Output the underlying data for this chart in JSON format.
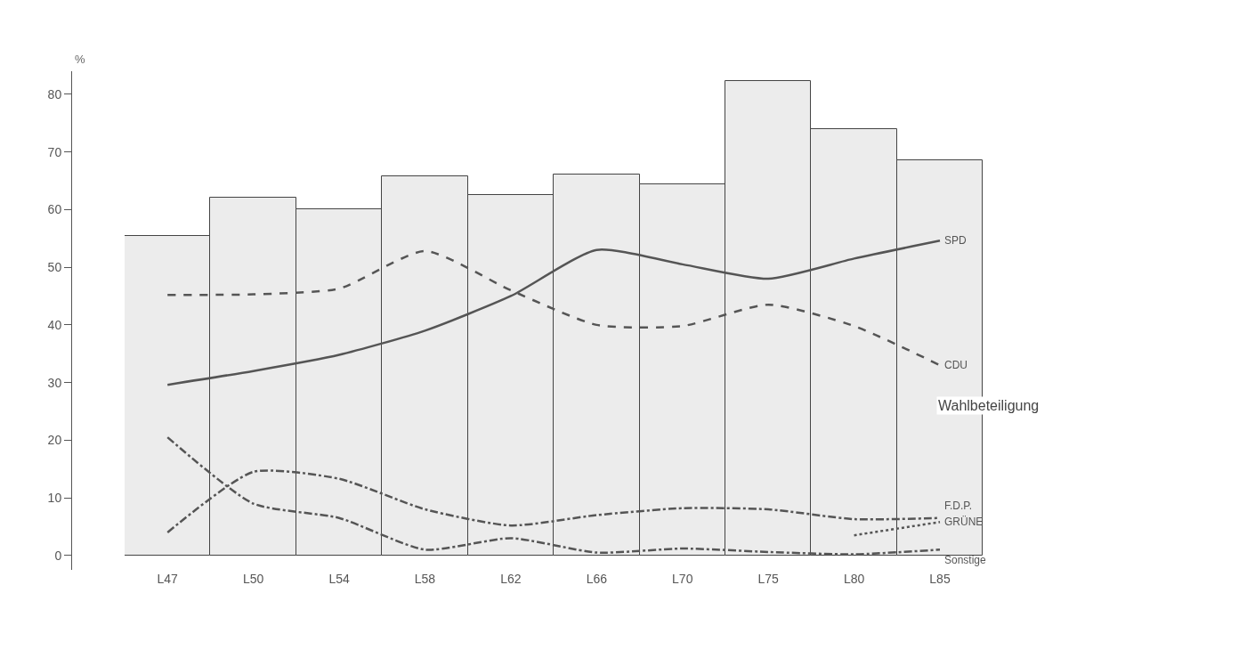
{
  "chart_data": {
    "type": "bar",
    "ylabel": "%",
    "categories": [
      "L47",
      "L50",
      "L54",
      "L58",
      "L62",
      "L66",
      "L70",
      "L75",
      "L80",
      "L85"
    ],
    "ylim": [
      -2.5,
      84
    ],
    "yticks": [
      0,
      10,
      20,
      30,
      40,
      50,
      60,
      70,
      80
    ],
    "legend": false,
    "series": [
      {
        "name": "Wahlbeteiligung",
        "color": "#ececec",
        "values": [
          55.5,
          62.0,
          60.0,
          65.7,
          62.6,
          66.1,
          64.4,
          82.3,
          73.9,
          68.5
        ]
      },
      {
        "name": "SPD",
        "type": "line",
        "color": "#555555",
        "line_style": "solid",
        "values": [
          29.6,
          32.0,
          34.8,
          39.0,
          45.0,
          53.0,
          50.5,
          48.0,
          51.5,
          54.6
        ]
      },
      {
        "name": "CDU",
        "type": "line",
        "color": "#555555",
        "line_style": "dashed",
        "values": [
          45.2,
          45.3,
          46.3,
          52.8,
          46.0,
          40.0,
          39.8,
          43.5,
          39.8,
          33.0
        ]
      },
      {
        "name": "F.D.P.",
        "type": "line",
        "color": "#555555",
        "line_style": "dashdot",
        "values": [
          4.0,
          14.5,
          13.3,
          8.0,
          5.2,
          7.0,
          8.2,
          8.0,
          6.3,
          6.5
        ]
      },
      {
        "name": "GRÜNE",
        "type": "line",
        "color": "#555555",
        "line_style": "dotted",
        "values": [
          null,
          null,
          null,
          null,
          null,
          null,
          null,
          null,
          3.5,
          5.8
        ]
      },
      {
        "name": "Sonstige",
        "type": "line",
        "color": "#555555",
        "line_style": "dashdot",
        "values": [
          20.5,
          9.0,
          6.5,
          1.0,
          3.0,
          0.5,
          1.2,
          0.6,
          0.2,
          1.0
        ]
      }
    ]
  }
}
